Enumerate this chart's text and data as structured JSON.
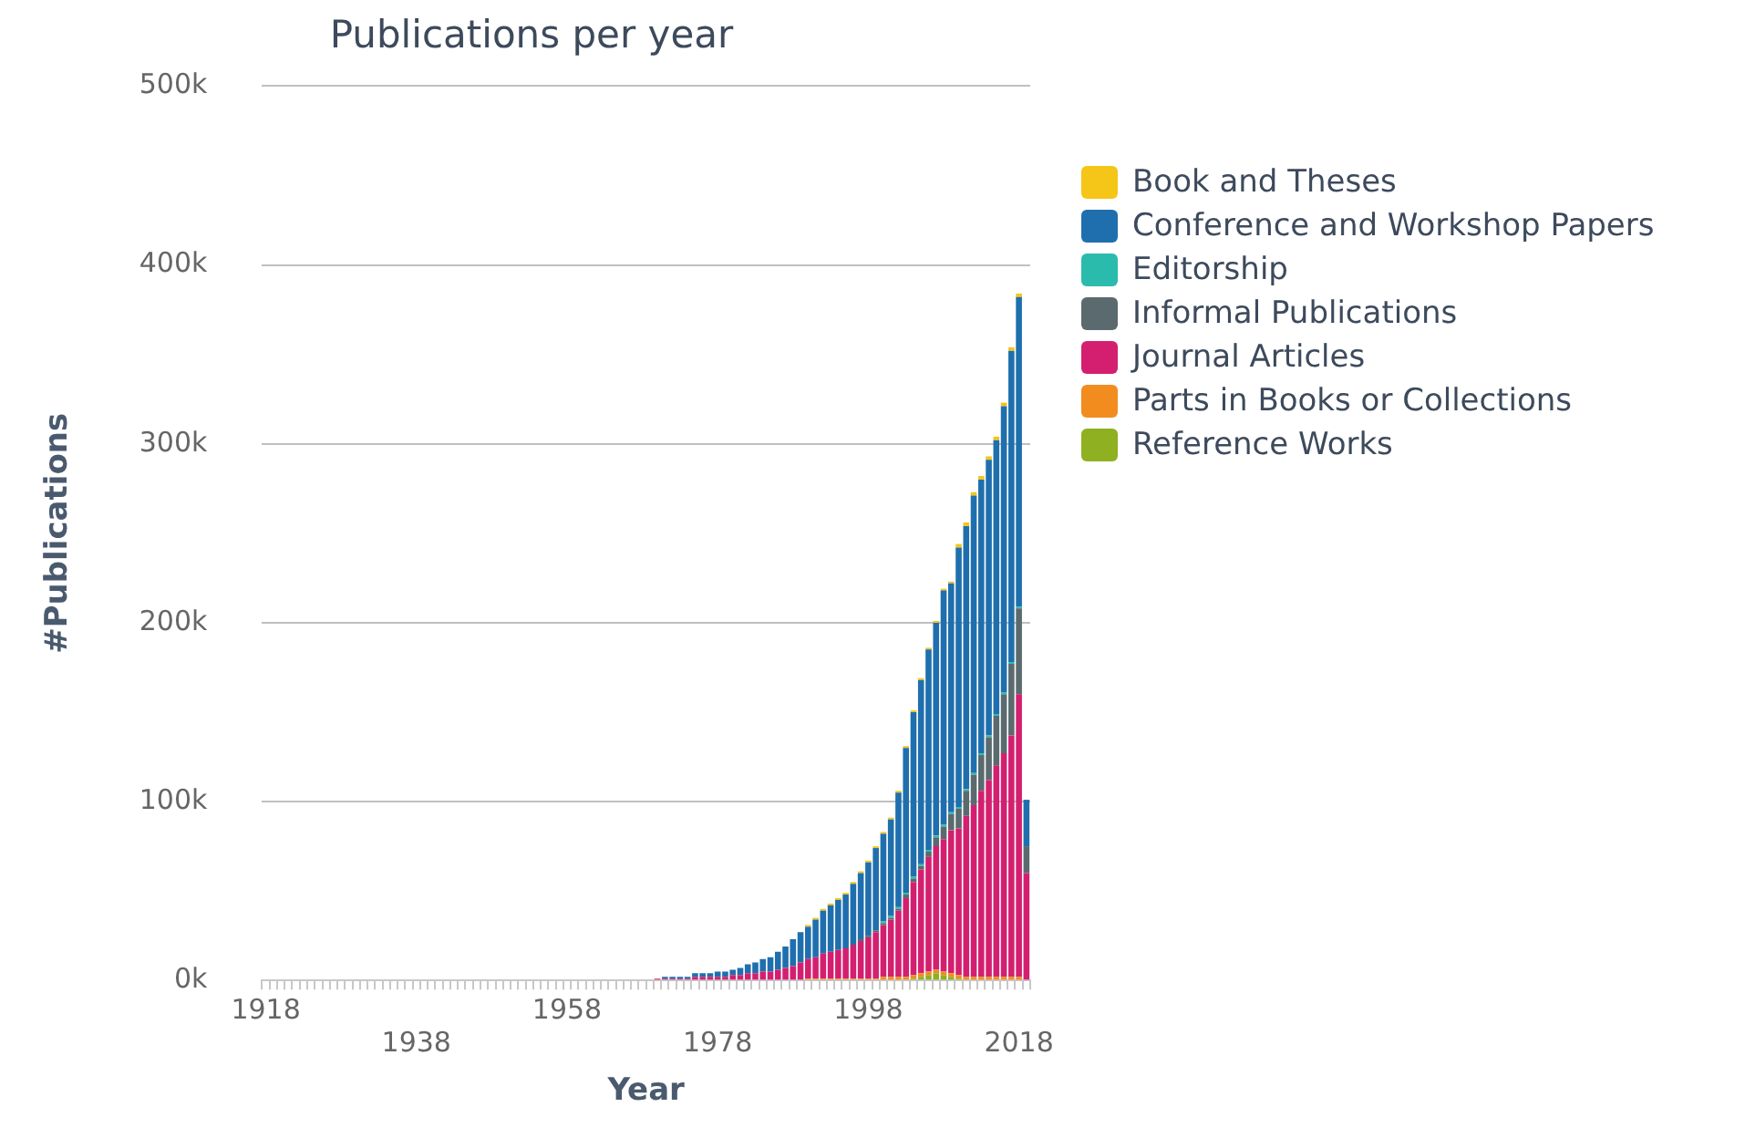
{
  "chart_data": {
    "type": "bar",
    "title": "Publications per year",
    "xlabel": "Year",
    "ylabel": "#Publications",
    "stacked": true,
    "grid": "y",
    "legend": "top right",
    "categories": [
      "1918",
      null,
      null,
      null,
      null,
      null,
      null,
      null,
      null,
      null,
      null,
      null,
      null,
      null,
      null,
      null,
      null,
      null,
      null,
      null,
      "1938",
      null,
      null,
      null,
      null,
      null,
      null,
      null,
      null,
      null,
      null,
      null,
      null,
      null,
      null,
      null,
      null,
      null,
      null,
      null,
      "1958",
      null,
      null,
      null,
      null,
      null,
      null,
      null,
      null,
      null,
      null,
      null,
      null,
      null,
      null,
      null,
      null,
      null,
      null,
      null,
      "1978",
      null,
      null,
      null,
      null,
      null,
      null,
      null,
      null,
      null,
      null,
      null,
      null,
      null,
      null,
      null,
      null,
      null,
      null,
      null,
      "1998",
      null,
      null,
      null,
      null,
      null,
      null,
      null,
      null,
      null,
      null,
      null,
      null,
      null,
      null,
      null,
      null,
      null,
      null,
      null,
      "2018",
      null
    ],
    "ylim": [
      0,
      500
    ],
    "yticks": [
      {
        "value": 0,
        "label": "0k"
      },
      {
        "value": 100,
        "label": "100k"
      },
      {
        "value": 200,
        "label": "200k"
      },
      {
        "value": 300,
        "label": "300k"
      },
      {
        "value": 400,
        "label": "400k"
      },
      {
        "value": 500,
        "label": "500k"
      }
    ],
    "series": [
      {
        "name": "Reference Works",
        "color": "#8fb021",
        "values": [
          0,
          0,
          0,
          0,
          0,
          0,
          0,
          0,
          0,
          0,
          0,
          0,
          0,
          0,
          0,
          0,
          0,
          0,
          0,
          0,
          0,
          0,
          0,
          0,
          0,
          0,
          0,
          0,
          0,
          0,
          0,
          0,
          0,
          0,
          0,
          0,
          0,
          0,
          0,
          0,
          0,
          0,
          0,
          0,
          0,
          0,
          0,
          0,
          0,
          0,
          0,
          0,
          0,
          0,
          0,
          0,
          0,
          0,
          0,
          0,
          0,
          0,
          0,
          0,
          0,
          0,
          0,
          0,
          0,
          0,
          0,
          0,
          0,
          0,
          0,
          0,
          0,
          0,
          0,
          0,
          0,
          0,
          0,
          0,
          0,
          0,
          1,
          2,
          3,
          4,
          3,
          2,
          1,
          0,
          0,
          0,
          0,
          0,
          0,
          0,
          0,
          0
        ]
      },
      {
        "name": "Parts in Books or Collections",
        "color": "#f28c1f",
        "values": [
          0,
          0,
          0,
          0,
          0,
          0,
          0,
          0,
          0,
          0,
          0,
          0,
          0,
          0,
          0,
          0,
          0,
          0,
          0,
          0,
          0,
          0,
          0,
          0,
          0,
          0,
          0,
          0,
          0,
          0,
          0,
          0,
          0,
          0,
          0,
          0,
          0,
          0,
          0,
          0,
          0,
          0,
          0,
          0,
          0,
          0,
          0,
          0,
          0,
          0,
          0,
          0,
          0,
          0,
          0,
          0,
          0,
          0,
          0,
          0,
          0,
          0,
          0,
          0,
          0,
          0,
          0,
          0,
          0,
          0,
          0,
          0,
          1,
          1,
          1,
          1,
          1,
          1,
          1,
          1,
          1,
          1,
          2,
          2,
          2,
          2,
          2,
          2,
          2,
          2,
          2,
          2,
          2,
          2,
          2,
          2,
          2,
          2,
          2,
          2,
          2,
          0
        ]
      },
      {
        "name": "Journal Articles",
        "color": "#d41f70",
        "values": [
          0,
          0,
          0,
          0,
          0,
          0,
          0,
          0,
          0,
          0,
          0,
          0,
          0,
          0,
          0,
          0,
          0,
          0,
          0,
          0,
          0,
          0,
          0,
          0,
          0,
          0,
          0,
          0,
          0,
          0,
          0,
          0,
          0,
          0,
          0,
          0,
          0,
          0,
          0,
          0,
          0,
          0,
          0,
          0,
          0,
          0,
          0,
          0,
          0,
          0,
          0,
          0,
          1,
          1,
          1,
          1,
          1,
          2,
          2,
          2,
          2,
          2,
          3,
          3,
          4,
          4,
          5,
          5,
          6,
          7,
          8,
          10,
          11,
          12,
          14,
          15,
          16,
          17,
          19,
          21,
          23,
          26,
          29,
          32,
          37,
          44,
          52,
          58,
          64,
          69,
          74,
          80,
          82,
          90,
          96,
          104,
          110,
          118,
          125,
          135,
          158,
          60
        ]
      },
      {
        "name": "Informal Publications",
        "color": "#5a6a6e",
        "values": [
          0,
          0,
          0,
          0,
          0,
          0,
          0,
          0,
          0,
          0,
          0,
          0,
          0,
          0,
          0,
          0,
          0,
          0,
          0,
          0,
          0,
          0,
          0,
          0,
          0,
          0,
          0,
          0,
          0,
          0,
          0,
          0,
          0,
          0,
          0,
          0,
          0,
          0,
          0,
          0,
          0,
          0,
          0,
          0,
          0,
          0,
          0,
          0,
          0,
          0,
          0,
          0,
          0,
          0,
          0,
          0,
          0,
          0,
          0,
          0,
          0,
          0,
          0,
          0,
          0,
          0,
          0,
          0,
          0,
          0,
          0,
          0,
          0,
          0,
          0,
          0,
          0,
          0,
          0,
          1,
          1,
          1,
          1,
          1,
          1,
          2,
          2,
          2,
          3,
          5,
          7,
          9,
          11,
          14,
          17,
          20,
          24,
          28,
          33,
          40,
          48,
          15
        ]
      },
      {
        "name": "Editorship",
        "color": "#2bbbad",
        "values": [
          0,
          0,
          0,
          0,
          0,
          0,
          0,
          0,
          0,
          0,
          0,
          0,
          0,
          0,
          0,
          0,
          0,
          0,
          0,
          0,
          0,
          0,
          0,
          0,
          0,
          0,
          0,
          0,
          0,
          0,
          0,
          0,
          0,
          0,
          0,
          0,
          0,
          0,
          0,
          0,
          0,
          0,
          0,
          0,
          0,
          0,
          0,
          0,
          0,
          0,
          0,
          0,
          0,
          0,
          0,
          0,
          0,
          0,
          0,
          0,
          0,
          0,
          0,
          0,
          0,
          0,
          0,
          0,
          0,
          0,
          0,
          0,
          0,
          0,
          0,
          0,
          0,
          0,
          0,
          0,
          0,
          0,
          1,
          1,
          1,
          1,
          1,
          1,
          1,
          1,
          1,
          1,
          1,
          1,
          1,
          1,
          1,
          1,
          1,
          1,
          1,
          0
        ]
      },
      {
        "name": "Conference and Workshop Papers",
        "color": "#1f6fae",
        "values": [
          0,
          0,
          0,
          0,
          0,
          0,
          0,
          0,
          0,
          0,
          0,
          0,
          0,
          0,
          0,
          0,
          0,
          0,
          0,
          0,
          0,
          0,
          0,
          0,
          0,
          0,
          0,
          0,
          0,
          0,
          0,
          0,
          0,
          0,
          0,
          0,
          0,
          0,
          0,
          0,
          0,
          0,
          0,
          0,
          0,
          0,
          0,
          0,
          0,
          0,
          0,
          0,
          0,
          1,
          1,
          1,
          1,
          2,
          2,
          2,
          3,
          3,
          3,
          4,
          5,
          6,
          7,
          8,
          10,
          12,
          15,
          17,
          18,
          21,
          24,
          26,
          28,
          30,
          34,
          37,
          41,
          46,
          49,
          54,
          64,
          81,
          92,
          103,
          112,
          119,
          131,
          128,
          145,
          147,
          155,
          153,
          154,
          153,
          160,
          174,
          173,
          26
        ]
      },
      {
        "name": "Book and Theses",
        "color": "#f5c518",
        "values": [
          0,
          0,
          0,
          0,
          0,
          0,
          0,
          0,
          0,
          0,
          0,
          0,
          0,
          0,
          0,
          0,
          0,
          0,
          0,
          0,
          0,
          0,
          0,
          0,
          0,
          0,
          0,
          0,
          0,
          0,
          0,
          0,
          0,
          0,
          0,
          0,
          0,
          0,
          0,
          0,
          0,
          0,
          0,
          0,
          0,
          0,
          0,
          0,
          0,
          0,
          0,
          0,
          0,
          0,
          0,
          0,
          0,
          0,
          0,
          0,
          0,
          0,
          0,
          0,
          0,
          0,
          0,
          0,
          0,
          0,
          0,
          0,
          1,
          1,
          1,
          1,
          1,
          1,
          1,
          1,
          1,
          1,
          1,
          1,
          1,
          1,
          1,
          1,
          1,
          1,
          1,
          1,
          2,
          2,
          2,
          2,
          2,
          2,
          2,
          2,
          2,
          0
        ]
      }
    ]
  }
}
